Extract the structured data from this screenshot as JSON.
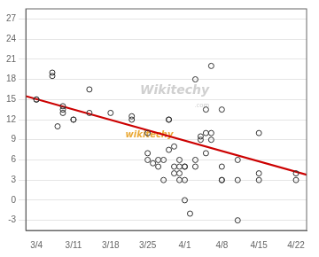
{
  "chart_data": {
    "type": "scatter",
    "xlim": [
      -2,
      51
    ],
    "xticks": [
      {
        "value": 0,
        "label": "3/4"
      },
      {
        "value": 7,
        "label": "3/11"
      },
      {
        "value": 14,
        "label": "3/18"
      },
      {
        "value": 21,
        "label": "3/25"
      },
      {
        "value": 28,
        "label": "4/1"
      },
      {
        "value": 35,
        "label": "4/8"
      },
      {
        "value": 42,
        "label": "4/15"
      },
      {
        "value": 49,
        "label": "4/22"
      }
    ],
    "ylim": [
      -4.5,
      28.5
    ],
    "yticks": [
      -3,
      0,
      3,
      6,
      9,
      12,
      15,
      18,
      21,
      24,
      27
    ],
    "grid": "y",
    "series": [
      {
        "type": "scatter",
        "color": "#333333",
        "marker": "circle",
        "x": [
          0,
          0,
          3,
          3,
          4,
          5,
          5,
          5,
          7,
          7,
          10,
          10,
          14,
          18,
          18,
          21,
          21,
          21,
          22,
          23,
          23,
          24,
          24,
          25,
          25,
          25,
          26,
          26,
          26,
          27,
          27,
          27,
          27,
          28,
          28,
          28,
          28,
          29,
          30,
          30,
          30,
          31,
          31,
          32,
          32,
          32,
          33,
          33,
          33,
          35,
          35,
          35,
          35,
          38,
          38,
          38,
          42,
          42,
          42,
          49,
          49
        ],
        "values": [
          15,
          15,
          19,
          18.5,
          11,
          14,
          13.5,
          13,
          12,
          12,
          16.5,
          13,
          13,
          12.5,
          12,
          10,
          7,
          6,
          5.5,
          6,
          5,
          6,
          3,
          12,
          12,
          7.5,
          8,
          5,
          4,
          6,
          5,
          4,
          3,
          5,
          5,
          3,
          0,
          -2,
          18,
          6,
          5,
          9,
          9.5,
          13.5,
          7,
          10,
          20,
          9,
          10,
          13.5,
          5,
          3,
          3,
          6,
          3,
          -3,
          4,
          3,
          10,
          4,
          3
        ]
      },
      {
        "type": "line",
        "color": "#cc0000",
        "line_style": "solid",
        "x": [
          -2,
          51
        ],
        "values": [
          15.5,
          3.8
        ]
      }
    ],
    "annotations": [
      {
        "text": "Wikitechy",
        "color": "#d0d0d0"
      },
      {
        "text": ".com",
        "color": "#d0d0d0"
      },
      {
        "text": "wikitechy",
        "color": "#e8a020"
      }
    ]
  }
}
